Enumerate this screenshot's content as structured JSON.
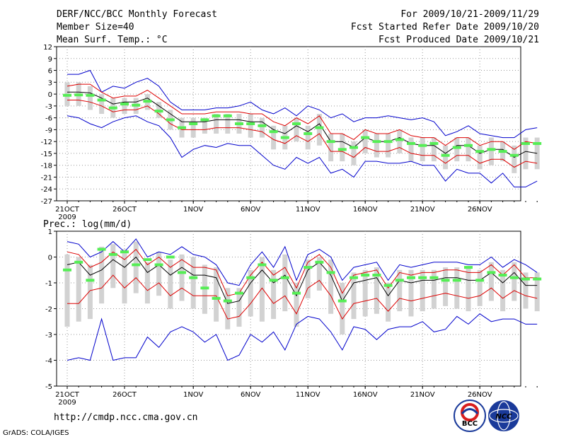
{
  "header": {
    "title": "DERF/NCC/BCC Monthly Forecast",
    "member": "Member Size=40",
    "variable": "Mean Surf. Temp.: °C",
    "period": "For 2009/10/21-2009/11/29",
    "refer": "Fcst Started Refer Date 2009/10/20",
    "produced": "Fcst Produced Date 2009/10/21"
  },
  "footer": {
    "url": "http://cmdp.ncc.cma.gov.cn",
    "grads": "GrADS: COLA/IGES",
    "logo1_text": "BCC",
    "logo2_text": "NCC"
  },
  "colors": {
    "box": "#d2d2d2",
    "obs": "#55ee55",
    "ens": "#000000",
    "sd": "#dd0000",
    "range": "#0000cc"
  },
  "chart_data": [
    {
      "type": "line",
      "title": "Mean Surf. Temp.: °C",
      "x_ticks": [
        "21OCT",
        "26OCT",
        "1NOV",
        "6NOV",
        "11NOV",
        "16NOV",
        "21NOV",
        "26NOV"
      ],
      "x_tick_day": [
        0,
        5,
        11,
        16,
        21,
        26,
        31,
        36
      ],
      "x_year": "2009",
      "ylim": [
        -27,
        12
      ],
      "y_ticks": [
        12,
        9,
        6,
        3,
        0,
        -3,
        -6,
        -9,
        -12,
        -15,
        -18,
        -21,
        -24,
        -27
      ],
      "ensemble_mean": [
        0.5,
        0.5,
        0.3,
        -1,
        -2.5,
        -2,
        -2,
        -1,
        -3,
        -5,
        -7,
        -7,
        -7,
        -6.5,
        -6.5,
        -6.5,
        -7,
        -7,
        -9,
        -10,
        -8,
        -9.5,
        -7.5,
        -12,
        -12,
        -13.5,
        -11,
        -12,
        -12,
        -11,
        -12.5,
        -13,
        -13,
        -15,
        -13,
        -13,
        -15,
        -14,
        -14,
        -16,
        -14.5,
        -15
      ],
      "sd_upper": [
        2,
        2.5,
        2.5,
        0.5,
        -1,
        -0.5,
        -0.5,
        1,
        -1,
        -3,
        -5,
        -5,
        -5,
        -4.5,
        -4.5,
        -4.5,
        -5,
        -5,
        -7,
        -8,
        -6,
        -7.5,
        -5.5,
        -10,
        -10,
        -11.5,
        -9,
        -10,
        -10,
        -9,
        -10.5,
        -11,
        -11,
        -13,
        -11,
        -11,
        -13,
        -12,
        -12,
        -14,
        -12,
        -12.5
      ],
      "sd_lower": [
        -1.5,
        -1.5,
        -2,
        -3,
        -4.5,
        -4,
        -4,
        -3,
        -5,
        -7.5,
        -9,
        -9,
        -9,
        -8.5,
        -8.5,
        -8.5,
        -9,
        -9.5,
        -11.5,
        -12.5,
        -10.5,
        -12,
        -10,
        -14.5,
        -14.5,
        -16,
        -13.5,
        -14.5,
        -14.5,
        -13.5,
        -15,
        -15.5,
        -15.5,
        -17.5,
        -15.5,
        -15.5,
        -17.5,
        -16.5,
        -16.5,
        -18.5,
        -17,
        -17.5
      ],
      "max": [
        5,
        5,
        6,
        0.5,
        2,
        1.5,
        3,
        4,
        2,
        -2,
        -4,
        -4,
        -4,
        -3.5,
        -3.5,
        -3,
        -2,
        -4,
        -5,
        -3.5,
        -5.5,
        -3,
        -4,
        -6,
        -5,
        -7,
        -6,
        -6,
        -5.5,
        -6,
        -6.5,
        -6,
        -7,
        -10.5,
        -9.5,
        -8,
        -10,
        -10.5,
        -11,
        -11,
        -9,
        -8.5
      ],
      "min": [
        -5.5,
        -6,
        -7.5,
        -8.5,
        -7,
        -6,
        -5.5,
        -7,
        -8,
        -11,
        -16,
        -14,
        -13,
        -13.5,
        -12.5,
        -13,
        -13,
        -15.5,
        -18,
        -19,
        -16,
        -17.5,
        -16,
        -20,
        -19,
        -21,
        -17,
        -17,
        -17.5,
        -17.5,
        -17,
        -18,
        -18,
        -22,
        -19,
        -20,
        -20,
        -22.5,
        -20,
        -23.5,
        -23.5,
        -22
      ],
      "box_upper": [
        3,
        3,
        2,
        0,
        -1,
        -1,
        -1,
        0,
        -2,
        -4,
        -6,
        -6,
        -6,
        -5,
        -5,
        -5,
        -5,
        -6,
        -8,
        -8,
        -6,
        -8,
        -5,
        -10,
        -10,
        -12,
        -9,
        -10,
        -10,
        -9,
        -11,
        -11,
        -11,
        -13,
        -11,
        -11,
        -13,
        -11,
        -12,
        -13,
        -11,
        -11
      ],
      "box_lower": [
        -3,
        -3,
        -4,
        -5,
        -6,
        -5,
        -5,
        -4,
        -6,
        -9,
        -11,
        -11,
        -10,
        -10,
        -10,
        -10,
        -11,
        -11,
        -14,
        -14,
        -12,
        -14,
        -13,
        -17,
        -17,
        -18,
        -15,
        -16,
        -16,
        -15,
        -17,
        -17,
        -17,
        -19,
        -17,
        -17,
        -19,
        -18,
        -17,
        -20,
        -19,
        -19
      ],
      "obs_mean": [
        -0.3,
        -0.2,
        -0.3,
        -1.5,
        -3.5,
        -2.5,
        -2.8,
        -1.8,
        -4.3,
        -6.5,
        -8.5,
        -7.5,
        -6.5,
        -5.5,
        -5.5,
        -7.5,
        -7.5,
        -8,
        -9.5,
        -11,
        -7.5,
        -10,
        -8.5,
        -12,
        -14,
        -13.5,
        -11,
        -12,
        -12,
        -11.5,
        -12.5,
        -13,
        -12.5,
        -15.5,
        -13.5,
        -13,
        -14.5,
        -14,
        -14.5,
        -15.5,
        -12.5,
        -12.5
      ]
    },
    {
      "type": "line",
      "title": "Prec.: log(mm/d)",
      "x_ticks": [
        "21OCT",
        "26OCT",
        "1NOV",
        "6NOV",
        "11NOV",
        "16NOV",
        "21NOV",
        "26NOV"
      ],
      "x_tick_day": [
        0,
        5,
        11,
        16,
        21,
        26,
        31,
        36
      ],
      "x_year": "2009",
      "ylim": [
        -5,
        1
      ],
      "y_ticks": [
        1,
        0,
        -1,
        -2,
        -3,
        -4,
        -5
      ],
      "ensemble_mean": [
        -0.3,
        -0.2,
        -0.7,
        -0.5,
        -0.1,
        -0.4,
        0,
        -0.6,
        -0.3,
        -0.7,
        -0.4,
        -0.7,
        -0.7,
        -0.8,
        -1.8,
        -1.7,
        -1,
        -0.5,
        -1,
        -0.7,
        -1.5,
        -0.5,
        -0.2,
        -0.7,
        -1.7,
        -1,
        -0.9,
        -0.8,
        -1.5,
        -0.9,
        -1,
        -0.9,
        -0.9,
        -0.8,
        -0.8,
        -0.9,
        -0.9,
        -0.6,
        -1,
        -0.6,
        -1.1,
        -1.1
      ],
      "sd_upper": [
        0.2,
        0.1,
        -0.4,
        -0.2,
        0.2,
        -0.1,
        0.3,
        -0.3,
        0,
        -0.4,
        -0.1,
        -0.4,
        -0.4,
        -0.5,
        -1.5,
        -1.4,
        -0.7,
        -0.2,
        -0.7,
        -0.4,
        -1.2,
        -0.2,
        0.1,
        -0.4,
        -1.4,
        -0.7,
        -0.6,
        -0.5,
        -1.2,
        -0.6,
        -0.7,
        -0.6,
        -0.6,
        -0.5,
        -0.5,
        -0.6,
        -0.6,
        -0.3,
        -0.7,
        -0.3,
        -0.8,
        -0.8
      ],
      "sd_lower": [
        -1.8,
        -1.8,
        -1.3,
        -1.2,
        -0.7,
        -1.2,
        -0.8,
        -1.3,
        -1,
        -1.5,
        -1.2,
        -1.5,
        -1.5,
        -1.5,
        -2.4,
        -2.3,
        -1.8,
        -1.2,
        -1.8,
        -1.5,
        -2.2,
        -1.2,
        -0.9,
        -1.5,
        -2.4,
        -1.8,
        -1.7,
        -1.6,
        -2.1,
        -1.6,
        -1.7,
        -1.6,
        -1.5,
        -1.4,
        -1.5,
        -1.6,
        -1.5,
        -1.2,
        -1.6,
        -1.3,
        -1.5,
        -1.6
      ],
      "max": [
        0.6,
        0.5,
        0,
        0.2,
        0.6,
        0.2,
        0.7,
        0,
        0.2,
        0.1,
        0.4,
        0.1,
        0,
        -0.3,
        -1,
        -1.1,
        -0.3,
        0.2,
        -0.4,
        0.4,
        -0.9,
        0.1,
        0.3,
        0,
        -0.9,
        -0.4,
        -0.3,
        -0.2,
        -0.9,
        -0.3,
        -0.4,
        -0.3,
        -0.2,
        -0.2,
        -0.2,
        -0.3,
        -0.3,
        0,
        -0.4,
        -0.1,
        -0.3,
        -0.6
      ],
      "min": [
        -4,
        -3.9,
        -4,
        -2.4,
        -4,
        -3.9,
        -3.9,
        -3.1,
        -3.5,
        -2.9,
        -2.7,
        -2.9,
        -3.3,
        -3,
        -4,
        -3.8,
        -3,
        -3.3,
        -2.9,
        -3.6,
        -2.6,
        -2.3,
        -2.4,
        -2.9,
        -3.6,
        -2.7,
        -2.8,
        -3.2,
        -2.8,
        -2.7,
        -2.7,
        -2.5,
        -2.9,
        -2.8,
        -2.3,
        -2.6,
        -2.2,
        -2.5,
        -2.4,
        -2.4,
        -2.6,
        -2.6
      ],
      "box_upper": [
        0.1,
        0,
        -0.3,
        0.4,
        0.5,
        0.3,
        0.6,
        -0.2,
        0.2,
        -0.1,
        0.1,
        0,
        -0.3,
        -0.4,
        -1.2,
        -1.2,
        -0.5,
        0,
        -0.5,
        0.1,
        -1,
        -0.1,
        0,
        -0.1,
        -1,
        -0.6,
        -0.5,
        -0.4,
        -1,
        -0.5,
        -0.5,
        -0.5,
        -0.5,
        -0.4,
        -0.4,
        -0.4,
        -0.5,
        -0.2,
        -0.5,
        -0.2,
        -0.6,
        -0.6
      ],
      "box_lower": [
        -2.7,
        -2.5,
        -2.4,
        -1.8,
        -1.2,
        -1.8,
        -1.4,
        -1.8,
        -1.5,
        -2,
        -1.7,
        -2,
        -2.2,
        -2.5,
        -2.8,
        -2.7,
        -2.3,
        -2.5,
        -2.4,
        -2.1,
        -2.7,
        -1.6,
        -1.3,
        -2.2,
        -3,
        -2.4,
        -2.3,
        -2.2,
        -2.5,
        -2.1,
        -2.3,
        -2.1,
        -2,
        -1.9,
        -2,
        -2.1,
        -1.9,
        -1.7,
        -2.1,
        -1.7,
        -2,
        -2.1
      ],
      "obs_mean": [
        -0.5,
        -0.2,
        -0.9,
        0.3,
        0.1,
        0.2,
        -0.3,
        -0.1,
        -0.3,
        0,
        -0.6,
        -0.8,
        -1.2,
        -1.6,
        -1.7,
        -1.4,
        -0.8,
        -0.3,
        -0.9,
        -0.8,
        -1.4,
        -0.4,
        -0.2,
        -0.6,
        -1.7,
        -0.8,
        -0.7,
        -0.7,
        -1.1,
        -0.9,
        -0.8,
        -0.8,
        -0.8,
        -0.9,
        -0.9,
        -0.4,
        -0.9,
        -0.6,
        -0.7,
        -0.8,
        -0.85,
        -0.85
      ]
    }
  ]
}
